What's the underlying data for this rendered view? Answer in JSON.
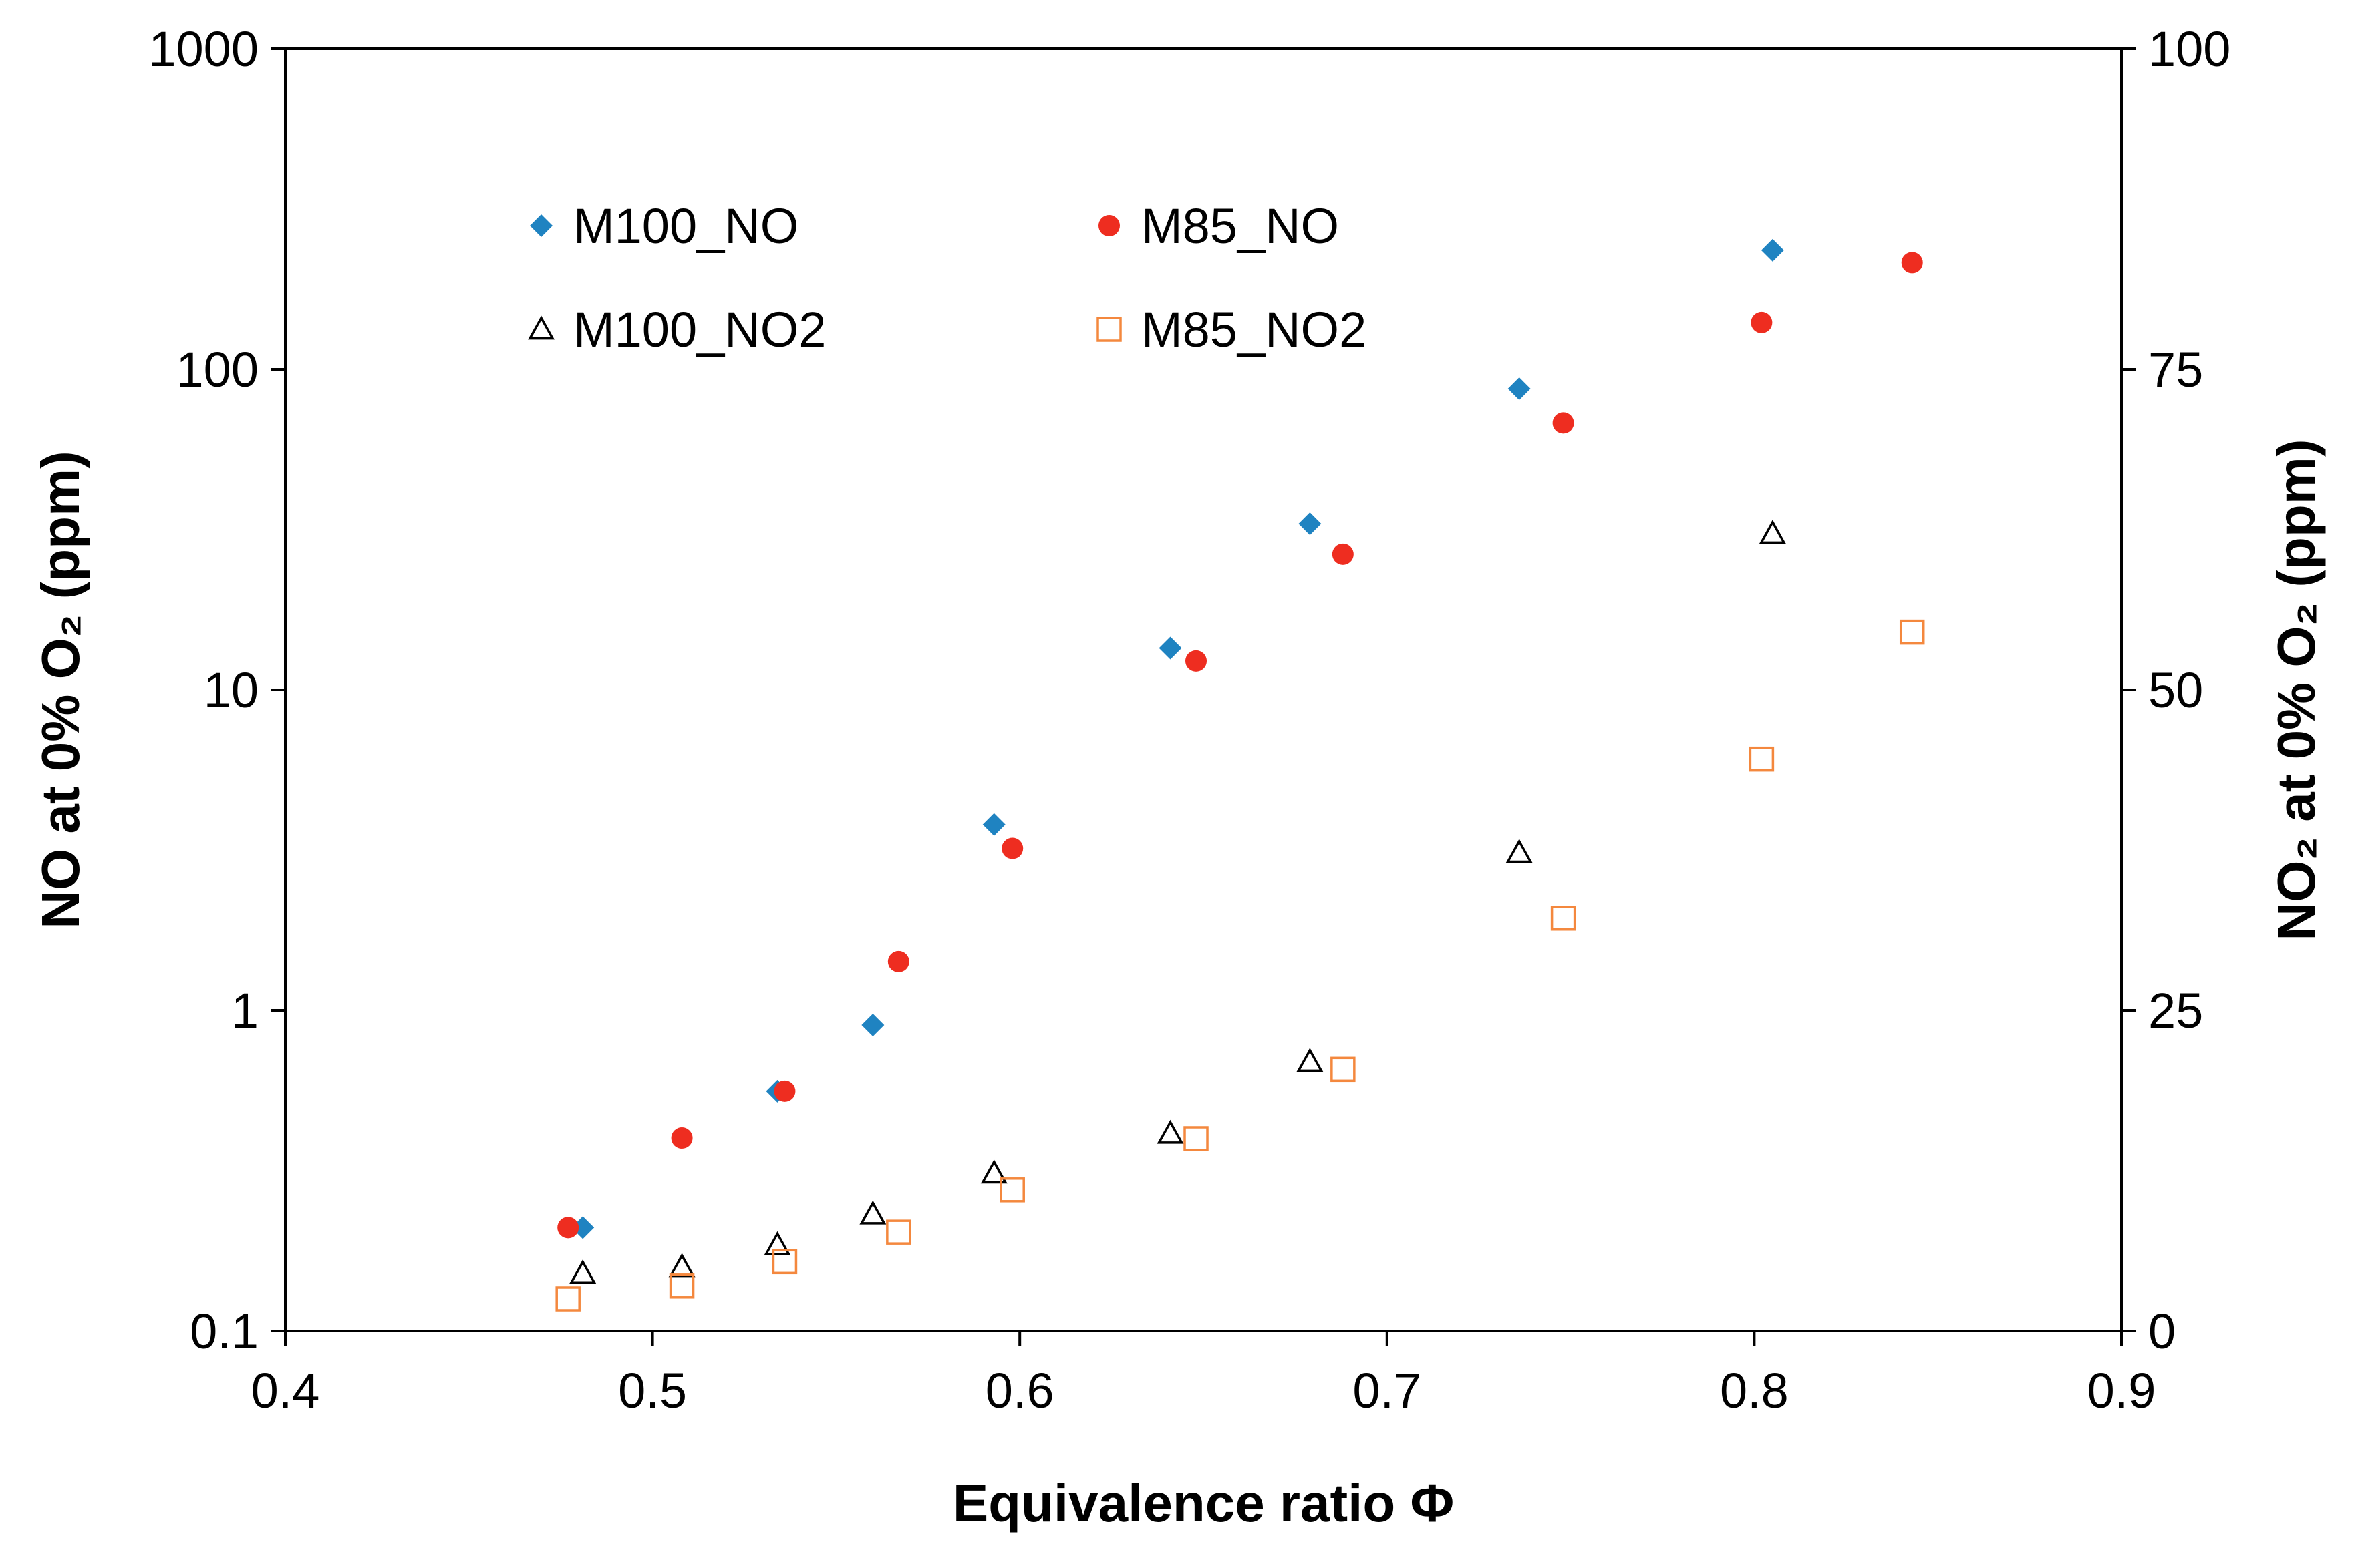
{
  "chart_data": {
    "type": "scatter",
    "xlabel": "Equivalence ratio Φ",
    "ylabel_left": "NO at 0% O₂ (ppm)",
    "ylabel_right": "NO₂ at 0% O₂ (ppm)",
    "xlim": [
      0.4,
      0.9
    ],
    "ylim_left": [
      0.1,
      1000
    ],
    "ylim_left_scale": "log",
    "ylim_right": [
      0,
      100
    ],
    "ylim_right_scale": "linear",
    "x_ticks": [
      "0.4",
      "0.5",
      "0.6",
      "0.7",
      "0.8",
      "0.9"
    ],
    "y_left_ticks": [
      "0.1",
      "1",
      "10",
      "100",
      "1000"
    ],
    "y_right_ticks": [
      "0",
      "25",
      "50",
      "75",
      "100"
    ],
    "legend_placement": "top-left inside",
    "series": [
      {
        "name": "M100_NO",
        "axis": "left",
        "marker": "diamond",
        "color": "#1f83c1",
        "x": [
          0.481,
          0.534,
          0.56,
          0.593,
          0.641,
          0.679,
          0.736,
          0.805
        ],
        "y": [
          0.21,
          0.56,
          0.9,
          3.8,
          13.5,
          33,
          87,
          235
        ]
      },
      {
        "name": "M85_NO",
        "axis": "left",
        "marker": "circle",
        "color": "#ee2d20",
        "x": [
          0.477,
          0.508,
          0.536,
          0.567,
          0.598,
          0.648,
          0.688,
          0.748,
          0.802,
          0.843
        ],
        "y": [
          0.21,
          0.4,
          0.56,
          1.42,
          3.2,
          12.3,
          26.5,
          68,
          140,
          215
        ]
      },
      {
        "name": "M100_NO2",
        "axis": "right",
        "marker": "triangle-open",
        "color": "#000000",
        "x": [
          0.481,
          0.508,
          0.534,
          0.56,
          0.593,
          0.641,
          0.679,
          0.736,
          0.805
        ],
        "y": [
          4.5,
          5.0,
          6.7,
          9.1,
          12.3,
          15.4,
          21.0,
          37.3,
          62.2
        ]
      },
      {
        "name": "M85_NO2",
        "axis": "right",
        "marker": "square-open",
        "color": "#f4883e",
        "x": [
          0.477,
          0.508,
          0.536,
          0.567,
          0.598,
          0.648,
          0.688,
          0.748,
          0.802,
          0.843
        ],
        "y": [
          2.5,
          3.5,
          5.4,
          7.7,
          11.0,
          15.0,
          20.4,
          32.2,
          44.6,
          54.5
        ]
      }
    ]
  }
}
